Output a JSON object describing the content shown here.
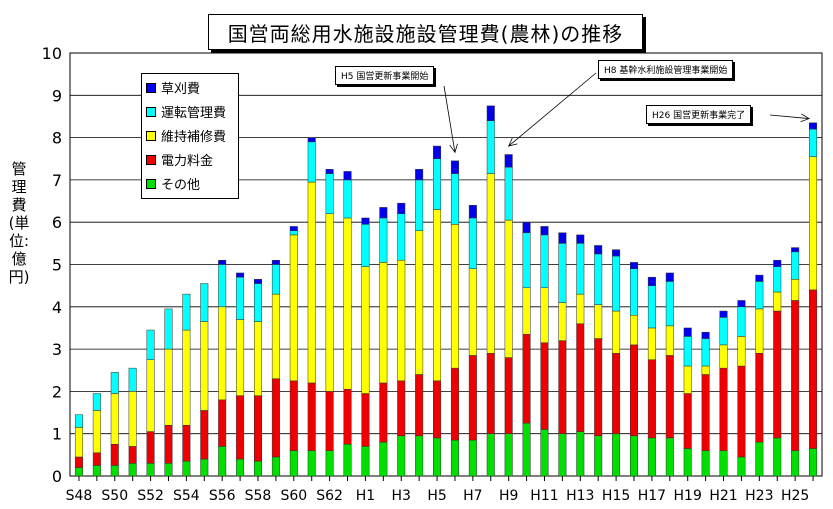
{
  "chart_data": {
    "type": "bar",
    "stacked": true,
    "title": "国営両総用水施設施設管理費(農林)の推移",
    "ylabel": "管理費(単位:億円)",
    "ylim": [
      0,
      10
    ],
    "yticks": [
      "0",
      "1",
      "2",
      "3",
      "4",
      "5",
      "6",
      "7",
      "8",
      "9",
      "10"
    ],
    "grid": true,
    "legend_position": "top-left",
    "categories": [
      "S48",
      "S49",
      "S50",
      "S51",
      "S52",
      "S53",
      "S54",
      "S55",
      "S56",
      "S57",
      "S58",
      "S59",
      "S60",
      "S61",
      "S62",
      "S63",
      "H1",
      "H2",
      "H3",
      "H4",
      "H5",
      "H6",
      "H7",
      "H8",
      "H9",
      "H10",
      "H11",
      "H12",
      "H13",
      "H14",
      "H15",
      "H16",
      "H17",
      "H18",
      "H19",
      "H20",
      "H21",
      "H22",
      "H23",
      "H24",
      "H25",
      "H26"
    ],
    "xtick_labels": [
      "S48",
      "S50",
      "S52",
      "S54",
      "S56",
      "S58",
      "S60",
      "S62",
      "H1",
      "H3",
      "H5",
      "H7",
      "H9",
      "H11",
      "H13",
      "H15",
      "H17",
      "H19",
      "H21",
      "H23",
      "H25"
    ],
    "series": [
      {
        "name": "その他",
        "color": "#00e000",
        "values": [
          0.2,
          0.25,
          0.25,
          0.3,
          0.3,
          0.3,
          0.35,
          0.4,
          0.7,
          0.4,
          0.35,
          0.45,
          0.6,
          0.6,
          0.6,
          0.75,
          0.7,
          0.8,
          0.95,
          0.95,
          0.9,
          0.85,
          0.85,
          1.0,
          1.0,
          1.25,
          1.1,
          1.0,
          1.05,
          0.95,
          1.0,
          0.95,
          0.9,
          0.9,
          0.65,
          0.6,
          0.6,
          0.45,
          0.8,
          0.9,
          0.6,
          0.65
        ]
      },
      {
        "name": "電力料金",
        "color": "#ee0000",
        "values": [
          0.25,
          0.3,
          0.5,
          0.4,
          0.75,
          0.9,
          0.85,
          1.15,
          1.1,
          1.5,
          1.55,
          1.85,
          1.65,
          1.6,
          1.4,
          1.3,
          1.25,
          1.4,
          1.3,
          1.45,
          1.35,
          1.7,
          2.0,
          1.9,
          1.8,
          2.1,
          2.05,
          2.2,
          2.55,
          2.3,
          1.9,
          2.15,
          1.85,
          1.95,
          1.3,
          1.8,
          1.95,
          2.15,
          2.1,
          3.0,
          3.55,
          3.75
        ]
      },
      {
        "name": "維持補修費",
        "color": "#ffff00",
        "values": [
          0.7,
          1.0,
          1.2,
          1.3,
          1.7,
          1.8,
          2.25,
          2.1,
          2.2,
          1.8,
          1.75,
          2.0,
          3.45,
          4.75,
          4.2,
          4.05,
          3.0,
          2.85,
          2.85,
          3.4,
          4.05,
          3.4,
          2.05,
          4.25,
          3.25,
          1.1,
          1.3,
          0.9,
          0.7,
          0.8,
          1.0,
          0.7,
          0.75,
          0.7,
          0.65,
          0.2,
          0.55,
          0.7,
          1.05,
          0.45,
          0.5,
          3.15
        ]
      },
      {
        "name": "運転管理費",
        "color": "#00ffff",
        "values": [
          0.3,
          0.4,
          0.5,
          0.55,
          0.7,
          0.95,
          0.85,
          0.9,
          1.0,
          1.0,
          0.9,
          0.7,
          0.1,
          0.95,
          0.95,
          0.9,
          1.0,
          1.05,
          1.1,
          1.2,
          1.2,
          1.2,
          1.2,
          1.25,
          1.25,
          1.3,
          1.25,
          1.4,
          1.2,
          1.2,
          1.3,
          1.1,
          1.0,
          1.05,
          0.7,
          0.65,
          0.65,
          0.7,
          0.65,
          0.6,
          0.65,
          0.65
        ]
      },
      {
        "name": "草刈費",
        "color": "#0000ee",
        "values": [
          0,
          0,
          0,
          0,
          0,
          0,
          0,
          0,
          0.1,
          0.1,
          0.1,
          0.1,
          0.1,
          0.1,
          0.1,
          0.2,
          0.15,
          0.25,
          0.25,
          0.25,
          0.3,
          0.3,
          0.3,
          0.35,
          0.3,
          0.25,
          0.2,
          0.25,
          0.2,
          0.2,
          0.15,
          0.15,
          0.2,
          0.2,
          0.2,
          0.15,
          0.15,
          0.15,
          0.15,
          0.15,
          0.1,
          0.15
        ]
      }
    ],
    "annotations": [
      {
        "text": "H5 国営更新事業開始",
        "target_category": "H6"
      },
      {
        "text": "H8 基幹水利施設管理事業開始",
        "target_category": "H9"
      },
      {
        "text": "H26 国営更新事業完了",
        "target_category": "H26"
      }
    ]
  },
  "colors": {
    "grid": "#000000",
    "background": "#ffffff"
  }
}
